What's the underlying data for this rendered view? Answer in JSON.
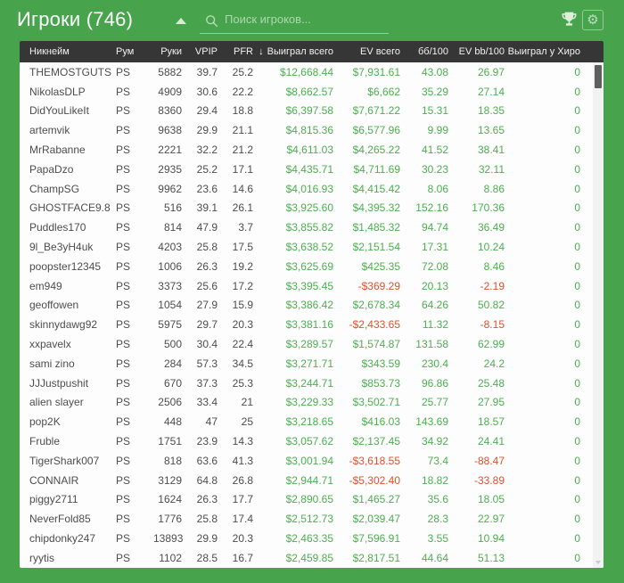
{
  "colors": {
    "app_green": "#48a44c",
    "table_header_bg": "#363636",
    "positive_value": "#4caf50",
    "negative_value": "#e0512c"
  },
  "header": {
    "title": "Игроки (746)",
    "search_placeholder": "Поиск игроков...",
    "settings_glyph": "⚙"
  },
  "table": {
    "sort_indicator": "↓",
    "columns": [
      {
        "key": "nickname",
        "label": "Никнейм"
      },
      {
        "key": "room",
        "label": "Рум"
      },
      {
        "key": "hands",
        "label": "Руки"
      },
      {
        "key": "vpip",
        "label": "VPIP"
      },
      {
        "key": "pfr",
        "label": "PFR"
      },
      {
        "key": "won",
        "label": "Выиграл всего",
        "sorted": "desc"
      },
      {
        "key": "ev",
        "label": "EV всего"
      },
      {
        "key": "bb100",
        "label": "бб/100"
      },
      {
        "key": "evbb100",
        "label": "EV bb/100"
      },
      {
        "key": "won_hero",
        "label": "Выиграл у Хиро"
      }
    ],
    "value_columns": [
      "won",
      "ev",
      "bb100",
      "evbb100",
      "won_hero"
    ],
    "rows": [
      {
        "nickname": "THEMOSTGUTS",
        "room": "PS",
        "hands": "5882",
        "vpip": "39.7",
        "pfr": "25.2",
        "won": "$12,668.44",
        "ev": "$7,931.61",
        "bb100": "43.08",
        "evbb100": "26.97",
        "won_hero": "0"
      },
      {
        "nickname": "NikolasDLP",
        "room": "PS",
        "hands": "4909",
        "vpip": "30.6",
        "pfr": "22.2",
        "won": "$8,662.57",
        "ev": "$6,662",
        "bb100": "35.29",
        "evbb100": "27.14",
        "won_hero": "0"
      },
      {
        "nickname": "DidYouLikeIt",
        "room": "PS",
        "hands": "8360",
        "vpip": "29.4",
        "pfr": "18.8",
        "won": "$6,397.58",
        "ev": "$7,671.22",
        "bb100": "15.31",
        "evbb100": "18.35",
        "won_hero": "0"
      },
      {
        "nickname": "artemvik",
        "room": "PS",
        "hands": "9638",
        "vpip": "29.9",
        "pfr": "21.1",
        "won": "$4,815.36",
        "ev": "$6,577.96",
        "bb100": "9.99",
        "evbb100": "13.65",
        "won_hero": "0"
      },
      {
        "nickname": "MrRabanne",
        "room": "PS",
        "hands": "2221",
        "vpip": "32.2",
        "pfr": "21.2",
        "won": "$4,611.03",
        "ev": "$4,265.22",
        "bb100": "41.52",
        "evbb100": "38.41",
        "won_hero": "0"
      },
      {
        "nickname": "PapaDzo",
        "room": "PS",
        "hands": "2935",
        "vpip": "25.2",
        "pfr": "17.1",
        "won": "$4,435.71",
        "ev": "$4,711.69",
        "bb100": "30.23",
        "evbb100": "32.11",
        "won_hero": "0"
      },
      {
        "nickname": "ChampSG",
        "room": "PS",
        "hands": "9962",
        "vpip": "23.6",
        "pfr": "14.6",
        "won": "$4,016.93",
        "ev": "$4,415.42",
        "bb100": "8.06",
        "evbb100": "8.86",
        "won_hero": "0"
      },
      {
        "nickname": "GHOSTFACE9.8",
        "room": "PS",
        "hands": "516",
        "vpip": "39.1",
        "pfr": "26.1",
        "won": "$3,925.60",
        "ev": "$4,395.32",
        "bb100": "152.16",
        "evbb100": "170.36",
        "won_hero": "0"
      },
      {
        "nickname": "Puddles170",
        "room": "PS",
        "hands": "814",
        "vpip": "47.9",
        "pfr": "3.7",
        "won": "$3,855.82",
        "ev": "$1,485.32",
        "bb100": "94.74",
        "evbb100": "36.49",
        "won_hero": "0"
      },
      {
        "nickname": "9l_Be3yH4uk",
        "room": "PS",
        "hands": "4203",
        "vpip": "25.8",
        "pfr": "17.5",
        "won": "$3,638.52",
        "ev": "$2,151.54",
        "bb100": "17.31",
        "evbb100": "10.24",
        "won_hero": "0"
      },
      {
        "nickname": "poopster12345",
        "room": "PS",
        "hands": "1006",
        "vpip": "26.3",
        "pfr": "19.2",
        "won": "$3,625.69",
        "ev": "$425.35",
        "bb100": "72.08",
        "evbb100": "8.46",
        "won_hero": "0"
      },
      {
        "nickname": "em949",
        "room": "PS",
        "hands": "3373",
        "vpip": "25.6",
        "pfr": "17.2",
        "won": "$3,395.45",
        "ev": "-$369.29",
        "bb100": "20.13",
        "evbb100": "-2.19",
        "won_hero": "0"
      },
      {
        "nickname": "geoffowen",
        "room": "PS",
        "hands": "1054",
        "vpip": "27.9",
        "pfr": "15.9",
        "won": "$3,386.42",
        "ev": "$2,678.34",
        "bb100": "64.26",
        "evbb100": "50.82",
        "won_hero": "0"
      },
      {
        "nickname": "skinnydawg92",
        "room": "PS",
        "hands": "5975",
        "vpip": "29.7",
        "pfr": "20.3",
        "won": "$3,381.16",
        "ev": "-$2,433.65",
        "bb100": "11.32",
        "evbb100": "-8.15",
        "won_hero": "0"
      },
      {
        "nickname": "xxpavelx",
        "room": "PS",
        "hands": "500",
        "vpip": "30.4",
        "pfr": "22.4",
        "won": "$3,289.57",
        "ev": "$1,574.87",
        "bb100": "131.58",
        "evbb100": "62.99",
        "won_hero": "0"
      },
      {
        "nickname": "sami zino",
        "room": "PS",
        "hands": "284",
        "vpip": "57.3",
        "pfr": "34.5",
        "won": "$3,271.71",
        "ev": "$343.59",
        "bb100": "230.4",
        "evbb100": "24.2",
        "won_hero": "0"
      },
      {
        "nickname": "JJJustpushit",
        "room": "PS",
        "hands": "670",
        "vpip": "37.3",
        "pfr": "25.3",
        "won": "$3,244.71",
        "ev": "$853.73",
        "bb100": "96.86",
        "evbb100": "25.48",
        "won_hero": "0"
      },
      {
        "nickname": "alien slayer",
        "room": "PS",
        "hands": "2506",
        "vpip": "33.4",
        "pfr": "21",
        "won": "$3,229.33",
        "ev": "$3,502.71",
        "bb100": "25.77",
        "evbb100": "27.95",
        "won_hero": "0"
      },
      {
        "nickname": "pop2K",
        "room": "PS",
        "hands": "448",
        "vpip": "47",
        "pfr": "25",
        "won": "$3,218.65",
        "ev": "$416.03",
        "bb100": "143.69",
        "evbb100": "18.57",
        "won_hero": "0"
      },
      {
        "nickname": "Fruble",
        "room": "PS",
        "hands": "1751",
        "vpip": "23.9",
        "pfr": "14.3",
        "won": "$3,057.62",
        "ev": "$2,137.45",
        "bb100": "34.92",
        "evbb100": "24.41",
        "won_hero": "0"
      },
      {
        "nickname": "TigerShark007",
        "room": "PS",
        "hands": "818",
        "vpip": "63.6",
        "pfr": "41.3",
        "won": "$3,001.94",
        "ev": "-$3,618.55",
        "bb100": "73.4",
        "evbb100": "-88.47",
        "won_hero": "0"
      },
      {
        "nickname": "CONNAIR",
        "room": "PS",
        "hands": "3129",
        "vpip": "64.8",
        "pfr": "26.8",
        "won": "$2,944.71",
        "ev": "-$5,302.40",
        "bb100": "18.82",
        "evbb100": "-33.89",
        "won_hero": "0"
      },
      {
        "nickname": "piggy2711",
        "room": "PS",
        "hands": "1624",
        "vpip": "26.3",
        "pfr": "17.7",
        "won": "$2,890.65",
        "ev": "$1,465.27",
        "bb100": "35.6",
        "evbb100": "18.05",
        "won_hero": "0"
      },
      {
        "nickname": "NeverFold85",
        "room": "PS",
        "hands": "1776",
        "vpip": "25.8",
        "pfr": "17.4",
        "won": "$2,512.73",
        "ev": "$2,039.47",
        "bb100": "28.3",
        "evbb100": "22.97",
        "won_hero": "0"
      },
      {
        "nickname": "chipdonky247",
        "room": "PS",
        "hands": "13893",
        "vpip": "29.9",
        "pfr": "20.3",
        "won": "$2,463.35",
        "ev": "$7,596.91",
        "bb100": "3.55",
        "evbb100": "10.94",
        "won_hero": "0"
      },
      {
        "nickname": "ryytis",
        "room": "PS",
        "hands": "1102",
        "vpip": "28.5",
        "pfr": "16.7",
        "won": "$2,459.85",
        "ev": "$2,817.51",
        "bb100": "44.64",
        "evbb100": "51.13",
        "won_hero": "0"
      }
    ]
  }
}
